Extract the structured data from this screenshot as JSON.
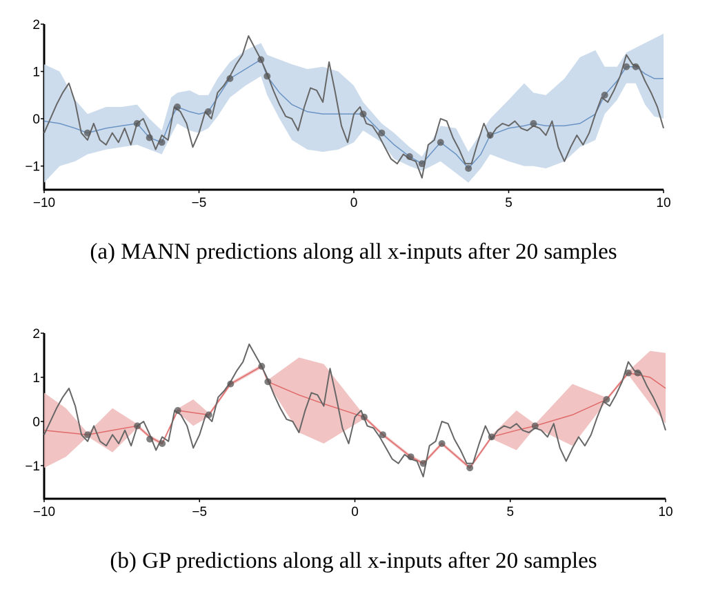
{
  "captions": {
    "a": "(a) MANN predictions along all x-inputs after 20 samples",
    "b": "(b) GP predictions along all x-inputs after 20 samples"
  },
  "colors": {
    "truth": "#666666",
    "samples": "#555555",
    "mann_band": "#c7d8ea",
    "mann_line": "#6b94c4",
    "gp_band": "#f0bcbc",
    "gp_line": "#e06a6a"
  },
  "chart_data": [
    {
      "id": "a",
      "type": "line",
      "title": "MANN predictions along all x-inputs after 20 samples",
      "xlim": [
        -10,
        10
      ],
      "ylim": [
        -1.5,
        2
      ],
      "xticks": [
        -10,
        -5,
        0,
        5,
        10
      ],
      "yticks": [
        -1,
        0,
        1,
        2
      ],
      "xtick_labels": [
        "−10",
        "−5",
        "0",
        "5",
        "10"
      ],
      "ytick_labels": [
        "−1",
        "0",
        "1",
        "2"
      ],
      "grid": false,
      "truth": {
        "x": [
          -10,
          -9.8,
          -9.6,
          -9.4,
          -9.2,
          -9.0,
          -8.8,
          -8.6,
          -8.4,
          -8.2,
          -8.0,
          -7.8,
          -7.6,
          -7.4,
          -7.2,
          -7.0,
          -6.8,
          -6.6,
          -6.4,
          -6.2,
          -6.0,
          -5.8,
          -5.6,
          -5.4,
          -5.2,
          -5.0,
          -4.8,
          -4.6,
          -4.4,
          -4.2,
          -4.0,
          -3.8,
          -3.6,
          -3.4,
          -3.2,
          -3.0,
          -2.8,
          -2.6,
          -2.4,
          -2.2,
          -2.0,
          -1.8,
          -1.6,
          -1.4,
          -1.2,
          -1.0,
          -0.8,
          -0.6,
          -0.4,
          -0.2,
          0,
          0.2,
          0.4,
          0.6,
          0.8,
          1.0,
          1.2,
          1.4,
          1.6,
          1.8,
          2.0,
          2.2,
          2.4,
          2.6,
          2.8,
          3.0,
          3.2,
          3.4,
          3.6,
          3.8,
          4.0,
          4.2,
          4.4,
          4.6,
          4.8,
          5.0,
          5.2,
          5.4,
          5.6,
          5.8,
          6.0,
          6.2,
          6.4,
          6.6,
          6.8,
          7.0,
          7.2,
          7.4,
          7.6,
          7.8,
          8.0,
          8.2,
          8.4,
          8.6,
          8.8,
          9.0,
          9.2,
          9.4,
          9.6,
          9.8,
          10
        ],
        "y": [
          -0.3,
          0.0,
          0.3,
          0.55,
          0.75,
          0.35,
          -0.3,
          -0.45,
          -0.1,
          -0.45,
          -0.55,
          -0.3,
          -0.5,
          -0.2,
          -0.55,
          -0.1,
          0.0,
          -0.3,
          -0.65,
          -0.35,
          -0.45,
          0.25,
          0.15,
          -0.1,
          -0.6,
          -0.3,
          0.15,
          0.0,
          0.55,
          0.7,
          0.9,
          1.15,
          1.35,
          1.75,
          1.5,
          1.25,
          0.95,
          0.6,
          0.3,
          0.05,
          0.0,
          -0.25,
          0.25,
          0.65,
          0.6,
          0.35,
          1.2,
          0.55,
          -0.15,
          -0.5,
          0.1,
          0.25,
          -0.1,
          -0.15,
          -0.35,
          -0.6,
          -0.85,
          -0.95,
          -0.75,
          -0.85,
          -0.9,
          -1.25,
          -0.55,
          -0.45,
          0.0,
          -0.05,
          -0.4,
          -0.65,
          -0.95,
          -0.95,
          -0.5,
          -0.1,
          -0.4,
          -0.2,
          -0.1,
          -0.15,
          -0.05,
          -0.2,
          -0.25,
          -0.15,
          -0.2,
          -0.35,
          -0.05,
          -0.6,
          -0.9,
          -0.6,
          -0.35,
          -0.55,
          -0.3,
          0.1,
          0.45,
          0.35,
          0.6,
          0.9,
          1.35,
          1.15,
          1.1,
          0.8,
          0.55,
          0.25,
          -0.2
        ]
      },
      "samples": {
        "x": [
          -8.6,
          -7.0,
          -6.6,
          -6.2,
          -5.7,
          -4.7,
          -4.0,
          -3.0,
          -2.8,
          0.3,
          0.9,
          1.8,
          2.2,
          2.8,
          3.7,
          4.4,
          5.8,
          8.1,
          8.8,
          9.1
        ],
        "y": [
          -0.3,
          -0.1,
          -0.4,
          -0.5,
          0.25,
          0.15,
          0.85,
          1.25,
          0.9,
          0.1,
          -0.3,
          -0.8,
          -0.95,
          -0.5,
          -1.05,
          -0.35,
          -0.1,
          0.5,
          1.1,
          1.1
        ]
      },
      "prediction": {
        "x": [
          -10,
          -9.5,
          -9.0,
          -8.6,
          -8.0,
          -7.5,
          -7.0,
          -6.6,
          -6.2,
          -5.9,
          -5.7,
          -5.3,
          -5.0,
          -4.7,
          -4.4,
          -4.0,
          -3.5,
          -3.0,
          -2.8,
          -2.4,
          -2.0,
          -1.5,
          -1.0,
          -0.5,
          0.0,
          0.3,
          0.9,
          1.3,
          1.8,
          2.2,
          2.8,
          3.3,
          3.7,
          4.1,
          4.4,
          5.0,
          5.5,
          5.8,
          6.2,
          6.8,
          7.3,
          7.8,
          8.1,
          8.5,
          8.8,
          9.1,
          9.4,
          9.7,
          10
        ],
        "mean": [
          -0.05,
          -0.1,
          -0.2,
          -0.3,
          -0.2,
          -0.15,
          -0.1,
          -0.4,
          -0.5,
          0.0,
          0.25,
          0.15,
          0.1,
          0.15,
          0.45,
          0.85,
          1.05,
          1.25,
          0.9,
          0.55,
          0.3,
          0.15,
          0.1,
          0.1,
          0.1,
          0.1,
          -0.3,
          -0.55,
          -0.8,
          -0.95,
          -0.5,
          -0.75,
          -1.05,
          -0.75,
          -0.35,
          -0.2,
          -0.15,
          -0.1,
          -0.15,
          -0.15,
          -0.1,
          0.1,
          0.5,
          0.8,
          1.1,
          1.1,
          0.95,
          0.85,
          0.85
        ],
        "lower": [
          -1.35,
          -1.0,
          -0.9,
          -0.75,
          -0.65,
          -0.6,
          -0.55,
          -0.65,
          -0.75,
          -0.35,
          -0.1,
          -0.25,
          -0.3,
          -0.2,
          0.05,
          0.45,
          0.7,
          0.9,
          0.5,
          0.0,
          -0.45,
          -0.65,
          -0.7,
          -0.65,
          -0.5,
          -0.25,
          -0.5,
          -0.85,
          -1.0,
          -1.1,
          -0.9,
          -1.15,
          -1.35,
          -1.05,
          -0.75,
          -0.9,
          -1.0,
          -1.0,
          -1.05,
          -0.9,
          -0.6,
          -0.45,
          0.1,
          0.4,
          0.75,
          0.75,
          0.3,
          0.05,
          0.0
        ],
        "upper": [
          1.15,
          1.0,
          0.4,
          0.1,
          0.25,
          0.25,
          0.3,
          0.0,
          -0.25,
          0.45,
          0.55,
          0.6,
          0.5,
          0.5,
          0.85,
          1.2,
          1.45,
          1.6,
          1.35,
          1.25,
          1.15,
          1.05,
          1.1,
          1.0,
          0.7,
          0.35,
          -0.1,
          -0.3,
          -0.6,
          -0.8,
          -0.15,
          -0.2,
          -0.7,
          -0.3,
          0.0,
          0.4,
          0.75,
          0.55,
          0.5,
          0.85,
          1.3,
          1.45,
          1.1,
          1.1,
          1.4,
          1.5,
          1.6,
          1.7,
          1.8
        ]
      }
    },
    {
      "id": "b",
      "type": "line",
      "title": "GP predictions along all x-inputs after 20 samples",
      "xlim": [
        -10,
        10
      ],
      "ylim": [
        -1.75,
        2
      ],
      "xticks": [
        -10,
        -5,
        0,
        5,
        10
      ],
      "yticks": [
        -1,
        0,
        1,
        2
      ],
      "xtick_labels": [
        "−10",
        "−5",
        "0",
        "5",
        "10"
      ],
      "ytick_labels": [
        "−1",
        "0",
        "1",
        "2"
      ],
      "grid": false,
      "truth": "same as chart a",
      "samples": "same as chart a",
      "prediction": {
        "x": [
          -10,
          -9.3,
          -8.6,
          -7.8,
          -7.0,
          -6.6,
          -6.2,
          -5.7,
          -5.2,
          -4.7,
          -4.0,
          -3.0,
          -2.8,
          -1.8,
          -1.0,
          0.3,
          0.9,
          1.8,
          2.2,
          2.8,
          3.7,
          4.4,
          5.2,
          5.8,
          7.0,
          8.1,
          8.8,
          9.5,
          10
        ],
        "mean": [
          -0.2,
          -0.25,
          -0.3,
          -0.2,
          -0.1,
          -0.35,
          -0.5,
          0.25,
          0.2,
          0.15,
          0.85,
          1.25,
          0.9,
          0.6,
          0.4,
          0.1,
          -0.3,
          -0.8,
          -0.95,
          -0.5,
          -1.05,
          -0.35,
          -0.2,
          -0.1,
          0.15,
          0.5,
          1.1,
          1.0,
          0.75
        ],
        "halfwidth": [
          0.85,
          0.55,
          0.04,
          0.5,
          0.04,
          0.04,
          0.04,
          0.04,
          0.3,
          0.04,
          0.04,
          0.04,
          0.04,
          0.85,
          0.9,
          0.04,
          0.04,
          0.04,
          0.04,
          0.04,
          0.04,
          0.04,
          0.45,
          0.04,
          0.7,
          0.04,
          0.04,
          0.6,
          0.8
        ]
      }
    }
  ]
}
